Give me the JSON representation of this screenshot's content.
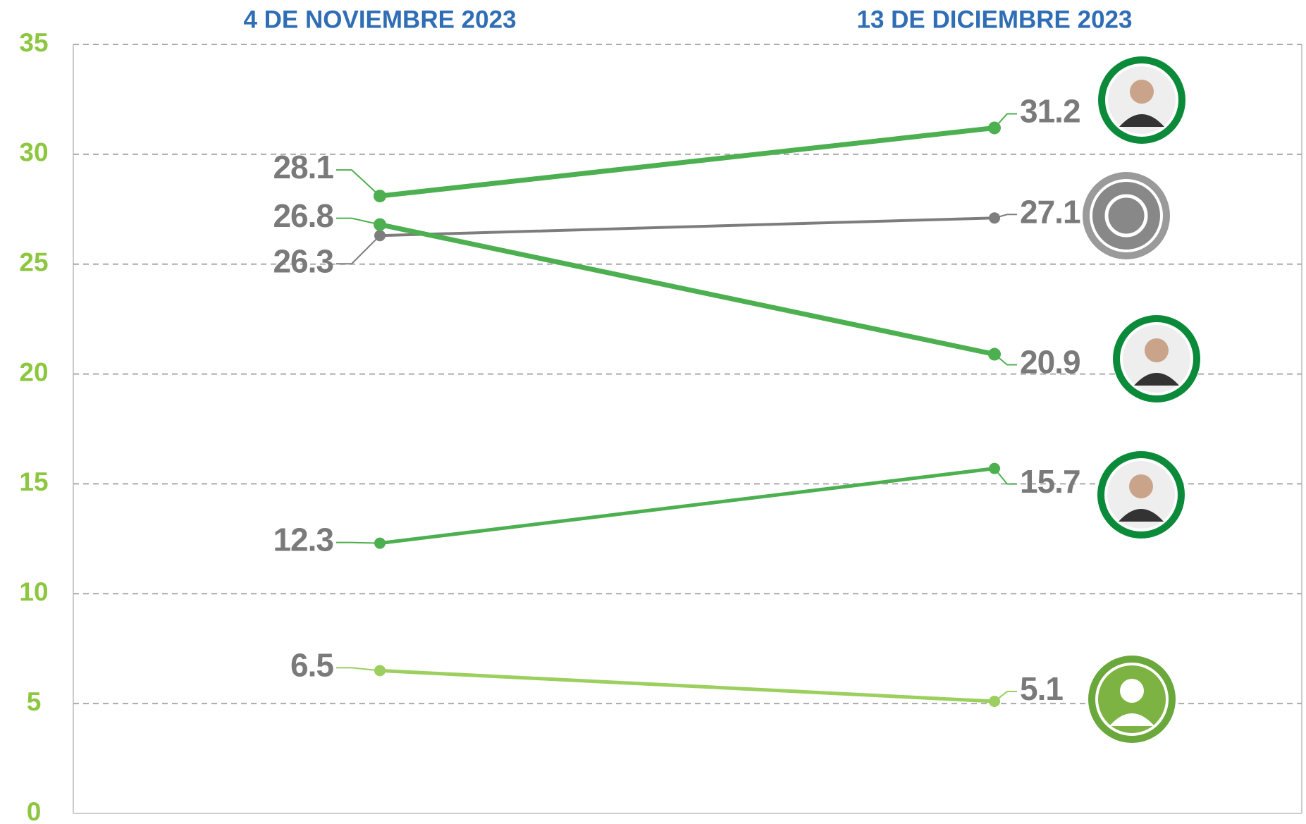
{
  "chart_data": {
    "type": "line",
    "categories": [
      "4 DE NOVIEMBRE 2023",
      "13 DE DICIEMBRE 2023"
    ],
    "series": [
      {
        "color": "#4caf50",
        "values": [
          28.1,
          31.2
        ]
      },
      {
        "color": "#7d7d7d",
        "values": [
          26.3,
          27.1
        ]
      },
      {
        "color": "#4caf50",
        "values": [
          26.8,
          20.9
        ]
      },
      {
        "color": "#4caf50",
        "values": [
          12.3,
          15.7
        ]
      },
      {
        "color": "#9ccf5e",
        "values": [
          6.5,
          5.1
        ]
      }
    ],
    "ylim": [
      0,
      35
    ],
    "yticks": [
      0,
      5,
      10,
      15,
      20,
      25,
      30,
      35
    ],
    "grid": true
  }
}
